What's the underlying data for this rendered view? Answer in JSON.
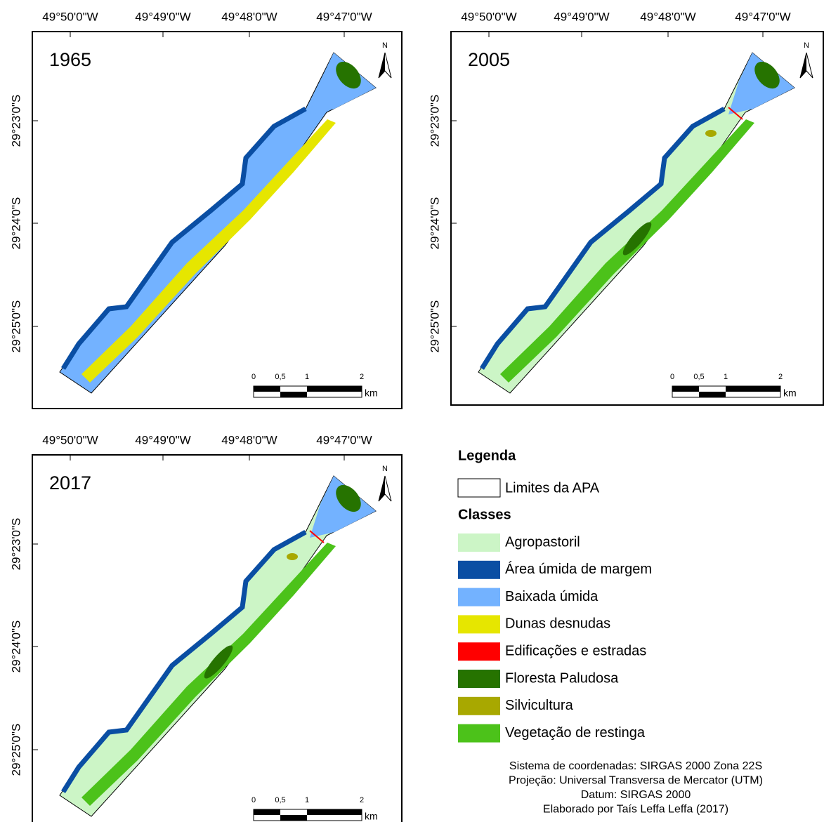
{
  "maps": [
    {
      "year": "1965",
      "x_labels": [
        "49°50'0\"W",
        "49°49'0\"W",
        "49°48'0\"W",
        "49°47'0\"W"
      ],
      "y_labels": [
        "29°23'0\"S",
        "29°24'0\"S",
        "29°25'0\"S"
      ],
      "north": "N",
      "scale": {
        "labels": [
          "0",
          "0,5",
          "1",
          "2"
        ],
        "unit": "km"
      }
    },
    {
      "year": "2005",
      "x_labels": [
        "49°50'0\"W",
        "49°49'0\"W",
        "49°48'0\"W",
        "49°47'0\"W"
      ],
      "y_labels": [
        "29°23'0\"S",
        "29°24'0\"S",
        "29°25'0\"S"
      ],
      "north": "N",
      "scale": {
        "labels": [
          "0",
          "0,5",
          "1",
          "2"
        ],
        "unit": "km"
      }
    },
    {
      "year": "2017",
      "x_labels": [
        "49°50'0\"W",
        "49°49'0\"W",
        "49°48'0\"W",
        "49°47'0\"W"
      ],
      "y_labels": [
        "29°23'0\"S",
        "29°24'0\"S",
        "29°25'0\"S"
      ],
      "north": "N",
      "scale": {
        "labels": [
          "0",
          "0,5",
          "1",
          "2"
        ],
        "unit": "km"
      }
    }
  ],
  "legend": {
    "title": "Legenda",
    "boundary": "Limites da APA",
    "classes_title": "Classes",
    "classes": [
      {
        "name": "Agropastoril",
        "color": "#ccf5c6"
      },
      {
        "name": "Área úmida de margem",
        "color": "#0a4ea3"
      },
      {
        "name": "Baixada úmida",
        "color": "#73b2ff"
      },
      {
        "name": "Dunas desnudas",
        "color": "#e6e600"
      },
      {
        "name": "Edificações e estradas",
        "color": "#ff0000"
      },
      {
        "name": "Floresta Paludosa",
        "color": "#267300"
      },
      {
        "name": "Silvicultura",
        "color": "#a8a800"
      },
      {
        "name": "Vegetação de restinga",
        "color": "#4cc21a"
      }
    ]
  },
  "credits": [
    "Sistema de coordenadas: SIRGAS 2000 Zona 22S",
    "Projeção: Universal Transversa de Mercator (UTM)",
    "Datum: SIRGAS 2000",
    "Elaborado por Taís Leffa Leffa (2017)"
  ]
}
